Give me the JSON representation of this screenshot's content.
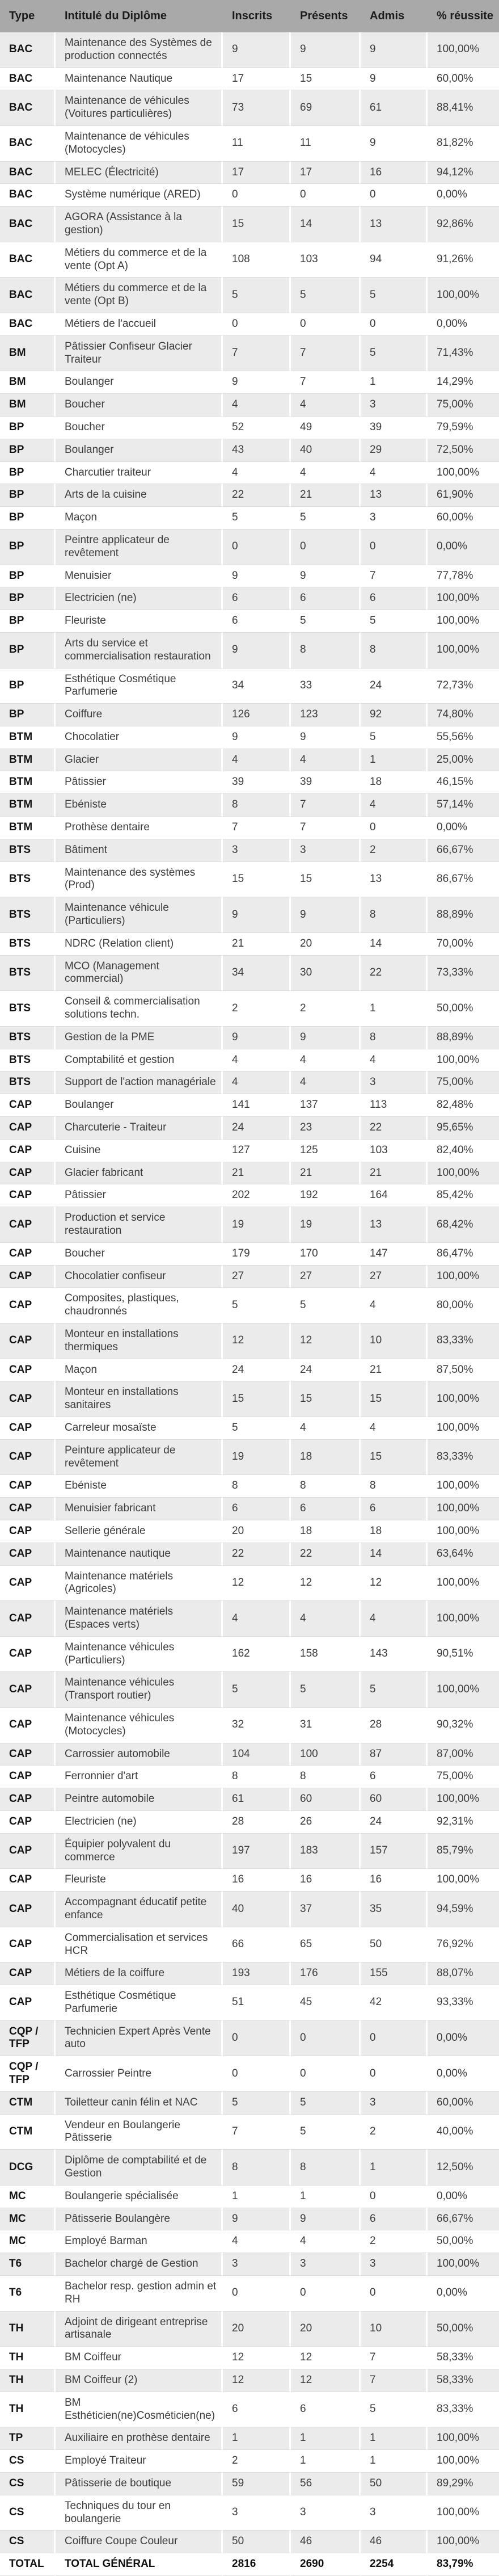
{
  "colors": {
    "header_bg": "#a9a9a9",
    "row_alt_bg": "#ebebeb",
    "row_bg": "#ffffff",
    "text": "#3c3c3c",
    "text_bold": "#141414",
    "grid_line": "#dcdcdc"
  },
  "table": {
    "headers": [
      "Type",
      "Intitulé du Diplôme",
      "Inscrits",
      "Présents",
      "Admis",
      "% réussite"
    ],
    "rows": [
      {
        "type": "BAC",
        "name": "Maintenance des Systèmes de production connectés",
        "inscrits": "9",
        "presents": "9",
        "admis": "9",
        "reussite": "100,00%"
      },
      {
        "type": "BAC",
        "name": "Maintenance Nautique",
        "inscrits": "17",
        "presents": "15",
        "admis": "9",
        "reussite": "60,00%"
      },
      {
        "type": "BAC",
        "name": "Maintenance de véhicules (Voitures particulières)",
        "inscrits": "73",
        "presents": "69",
        "admis": "61",
        "reussite": "88,41%"
      },
      {
        "type": "BAC",
        "name": "Maintenance de véhicules (Motocycles)",
        "inscrits": "11",
        "presents": "11",
        "admis": "9",
        "reussite": "81,82%"
      },
      {
        "type": "BAC",
        "name": "MELEC (Électricité)",
        "inscrits": "17",
        "presents": "17",
        "admis": "16",
        "reussite": "94,12%"
      },
      {
        "type": "BAC",
        "name": "Système numérique (ARED)",
        "inscrits": "0",
        "presents": "0",
        "admis": "0",
        "reussite": "0,00%"
      },
      {
        "type": "BAC",
        "name": "AGORA (Assistance à la gestion)",
        "inscrits": "15",
        "presents": "14",
        "admis": "13",
        "reussite": "92,86%"
      },
      {
        "type": "BAC",
        "name": "Métiers du commerce et de la vente (Opt A)",
        "inscrits": "108",
        "presents": "103",
        "admis": "94",
        "reussite": "91,26%"
      },
      {
        "type": "BAC",
        "name": "Métiers du commerce et de la vente (Opt B)",
        "inscrits": "5",
        "presents": "5",
        "admis": "5",
        "reussite": "100,00%"
      },
      {
        "type": "BAC",
        "name": "Métiers de l'accueil",
        "inscrits": "0",
        "presents": "0",
        "admis": "0",
        "reussite": "0,00%"
      },
      {
        "type": "BM",
        "name": "Pâtissier Confiseur Glacier Traiteur",
        "inscrits": "7",
        "presents": "7",
        "admis": "5",
        "reussite": "71,43%"
      },
      {
        "type": "BM",
        "name": "Boulanger",
        "inscrits": "9",
        "presents": "7",
        "admis": "1",
        "reussite": "14,29%"
      },
      {
        "type": "BM",
        "name": "Boucher",
        "inscrits": "4",
        "presents": "4",
        "admis": "3",
        "reussite": "75,00%"
      },
      {
        "type": "BP",
        "name": "Boucher",
        "inscrits": "52",
        "presents": "49",
        "admis": "39",
        "reussite": "79,59%"
      },
      {
        "type": "BP",
        "name": "Boulanger",
        "inscrits": "43",
        "presents": "40",
        "admis": "29",
        "reussite": "72,50%"
      },
      {
        "type": "BP",
        "name": "Charcutier traiteur",
        "inscrits": "4",
        "presents": "4",
        "admis": "4",
        "reussite": "100,00%"
      },
      {
        "type": "BP",
        "name": "Arts de la cuisine",
        "inscrits": "22",
        "presents": "21",
        "admis": "13",
        "reussite": "61,90%"
      },
      {
        "type": "BP",
        "name": "Maçon",
        "inscrits": "5",
        "presents": "5",
        "admis": "3",
        "reussite": "60,00%"
      },
      {
        "type": "BP",
        "name": "Peintre applicateur de revêtement",
        "inscrits": "0",
        "presents": "0",
        "admis": "0",
        "reussite": "0,00%"
      },
      {
        "type": "BP",
        "name": "Menuisier",
        "inscrits": "9",
        "presents": "9",
        "admis": "7",
        "reussite": "77,78%"
      },
      {
        "type": "BP",
        "name": "Electricien (ne)",
        "inscrits": "6",
        "presents": "6",
        "admis": "6",
        "reussite": "100,00%"
      },
      {
        "type": "BP",
        "name": "Fleuriste",
        "inscrits": "6",
        "presents": "5",
        "admis": "5",
        "reussite": "100,00%"
      },
      {
        "type": "BP",
        "name": "Arts du service et commercialisation restauration",
        "inscrits": "9",
        "presents": "8",
        "admis": "8",
        "reussite": "100,00%"
      },
      {
        "type": "BP",
        "name": "Esthétique Cosmétique Parfumerie",
        "inscrits": "34",
        "presents": "33",
        "admis": "24",
        "reussite": "72,73%"
      },
      {
        "type": "BP",
        "name": "Coiffure",
        "inscrits": "126",
        "presents": "123",
        "admis": "92",
        "reussite": "74,80%"
      },
      {
        "type": "BTM",
        "name": "Chocolatier",
        "inscrits": "9",
        "presents": "9",
        "admis": "5",
        "reussite": "55,56%"
      },
      {
        "type": "BTM",
        "name": "Glacier",
        "inscrits": "4",
        "presents": "4",
        "admis": "1",
        "reussite": "25,00%"
      },
      {
        "type": "BTM",
        "name": "Pâtissier",
        "inscrits": "39",
        "presents": "39",
        "admis": "18",
        "reussite": "46,15%"
      },
      {
        "type": "BTM",
        "name": "Ebéniste",
        "inscrits": "8",
        "presents": "7",
        "admis": "4",
        "reussite": "57,14%"
      },
      {
        "type": "BTM",
        "name": "Prothèse dentaire",
        "inscrits": "7",
        "presents": "7",
        "admis": "0",
        "reussite": "0,00%"
      },
      {
        "type": "BTS",
        "name": "Bâtiment",
        "inscrits": "3",
        "presents": "3",
        "admis": "2",
        "reussite": "66,67%"
      },
      {
        "type": "BTS",
        "name": "Maintenance des systèmes (Prod)",
        "inscrits": "15",
        "presents": "15",
        "admis": "13",
        "reussite": "86,67%"
      },
      {
        "type": "BTS",
        "name": "Maintenance véhicule (Particuliers)",
        "inscrits": "9",
        "presents": "9",
        "admis": "8",
        "reussite": "88,89%"
      },
      {
        "type": "BTS",
        "name": "NDRC (Relation client)",
        "inscrits": "21",
        "presents": "20",
        "admis": "14",
        "reussite": "70,00%"
      },
      {
        "type": "BTS",
        "name": "MCO (Management commercial)",
        "inscrits": "34",
        "presents": "30",
        "admis": "22",
        "reussite": "73,33%"
      },
      {
        "type": "BTS",
        "name": "Conseil & commercialisation solutions techn.",
        "inscrits": "2",
        "presents": "2",
        "admis": "1",
        "reussite": "50,00%"
      },
      {
        "type": "BTS",
        "name": "Gestion de la PME",
        "inscrits": "9",
        "presents": "9",
        "admis": "8",
        "reussite": "88,89%"
      },
      {
        "type": "BTS",
        "name": "Comptabilité et gestion",
        "inscrits": "4",
        "presents": "4",
        "admis": "4",
        "reussite": "100,00%"
      },
      {
        "type": "BTS",
        "name": "Support de l'action managériale",
        "inscrits": "4",
        "presents": "4",
        "admis": "3",
        "reussite": "75,00%"
      },
      {
        "type": "CAP",
        "name": "Boulanger",
        "inscrits": "141",
        "presents": "137",
        "admis": "113",
        "reussite": "82,48%"
      },
      {
        "type": "CAP",
        "name": "Charcuterie - Traiteur",
        "inscrits": "24",
        "presents": "23",
        "admis": "22",
        "reussite": "95,65%"
      },
      {
        "type": "CAP",
        "name": "Cuisine",
        "inscrits": "127",
        "presents": "125",
        "admis": "103",
        "reussite": "82,40%"
      },
      {
        "type": "CAP",
        "name": "Glacier fabricant",
        "inscrits": "21",
        "presents": "21",
        "admis": "21",
        "reussite": "100,00%"
      },
      {
        "type": "CAP",
        "name": "Pâtissier",
        "inscrits": "202",
        "presents": "192",
        "admis": "164",
        "reussite": "85,42%"
      },
      {
        "type": "CAP",
        "name": "Production et service restauration",
        "inscrits": "19",
        "presents": "19",
        "admis": "13",
        "reussite": "68,42%"
      },
      {
        "type": "CAP",
        "name": "Boucher",
        "inscrits": "179",
        "presents": "170",
        "admis": "147",
        "reussite": "86,47%"
      },
      {
        "type": "CAP",
        "name": "Chocolatier confiseur",
        "inscrits": "27",
        "presents": "27",
        "admis": "27",
        "reussite": "100,00%"
      },
      {
        "type": "CAP",
        "name": "Composites, plastiques, chaudronnés",
        "inscrits": "5",
        "presents": "5",
        "admis": "4",
        "reussite": "80,00%"
      },
      {
        "type": "CAP",
        "name": "Monteur en installations thermiques",
        "inscrits": "12",
        "presents": "12",
        "admis": "10",
        "reussite": "83,33%"
      },
      {
        "type": "CAP",
        "name": "Maçon",
        "inscrits": "24",
        "presents": "24",
        "admis": "21",
        "reussite": "87,50%"
      },
      {
        "type": "CAP",
        "name": "Monteur en installations sanitaires",
        "inscrits": "15",
        "presents": "15",
        "admis": "15",
        "reussite": "100,00%"
      },
      {
        "type": "CAP",
        "name": "Carreleur mosaïste",
        "inscrits": "5",
        "presents": "4",
        "admis": "4",
        "reussite": "100,00%"
      },
      {
        "type": "CAP",
        "name": "Peinture applicateur de revêtement",
        "inscrits": "19",
        "presents": "18",
        "admis": "15",
        "reussite": "83,33%"
      },
      {
        "type": "CAP",
        "name": "Ebéniste",
        "inscrits": "8",
        "presents": "8",
        "admis": "8",
        "reussite": "100,00%"
      },
      {
        "type": "CAP",
        "name": "Menuisier fabricant",
        "inscrits": "6",
        "presents": "6",
        "admis": "6",
        "reussite": "100,00%"
      },
      {
        "type": "CAP",
        "name": "Sellerie générale",
        "inscrits": "20",
        "presents": "18",
        "admis": "18",
        "reussite": "100,00%"
      },
      {
        "type": "CAP",
        "name": "Maintenance nautique",
        "inscrits": "22",
        "presents": "22",
        "admis": "14",
        "reussite": "63,64%"
      },
      {
        "type": "CAP",
        "name": "Maintenance matériels (Agricoles)",
        "inscrits": "12",
        "presents": "12",
        "admis": "12",
        "reussite": "100,00%"
      },
      {
        "type": "CAP",
        "name": "Maintenance matériels (Espaces verts)",
        "inscrits": "4",
        "presents": "4",
        "admis": "4",
        "reussite": "100,00%"
      },
      {
        "type": "CAP",
        "name": "Maintenance véhicules (Particuliers)",
        "inscrits": "162",
        "presents": "158",
        "admis": "143",
        "reussite": "90,51%"
      },
      {
        "type": "CAP",
        "name": "Maintenance véhicules (Transport routier)",
        "inscrits": "5",
        "presents": "5",
        "admis": "5",
        "reussite": "100,00%"
      },
      {
        "type": "CAP",
        "name": "Maintenance véhicules (Motocycles)",
        "inscrits": "32",
        "presents": "31",
        "admis": "28",
        "reussite": "90,32%"
      },
      {
        "type": "CAP",
        "name": "Carrossier automobile",
        "inscrits": "104",
        "presents": "100",
        "admis": "87",
        "reussite": "87,00%"
      },
      {
        "type": "CAP",
        "name": "Ferronnier d'art",
        "inscrits": "8",
        "presents": "8",
        "admis": "6",
        "reussite": "75,00%"
      },
      {
        "type": "CAP",
        "name": "Peintre automobile",
        "inscrits": "61",
        "presents": "60",
        "admis": "60",
        "reussite": "100,00%"
      },
      {
        "type": "CAP",
        "name": "Electricien (ne)",
        "inscrits": "28",
        "presents": "26",
        "admis": "24",
        "reussite": "92,31%"
      },
      {
        "type": "CAP",
        "name": "Équipier polyvalent du commerce",
        "inscrits": "197",
        "presents": "183",
        "admis": "157",
        "reussite": "85,79%"
      },
      {
        "type": "CAP",
        "name": "Fleuriste",
        "inscrits": "16",
        "presents": "16",
        "admis": "16",
        "reussite": "100,00%"
      },
      {
        "type": "CAP",
        "name": "Accompagnant éducatif petite enfance",
        "inscrits": "40",
        "presents": "37",
        "admis": "35",
        "reussite": "94,59%"
      },
      {
        "type": "CAP",
        "name": "Commercialisation et services HCR",
        "inscrits": "66",
        "presents": "65",
        "admis": "50",
        "reussite": "76,92%"
      },
      {
        "type": "CAP",
        "name": "Métiers de la coiffure",
        "inscrits": "193",
        "presents": "176",
        "admis": "155",
        "reussite": "88,07%"
      },
      {
        "type": "CAP",
        "name": "Esthétique Cosmétique Parfumerie",
        "inscrits": "51",
        "presents": "45",
        "admis": "42",
        "reussite": "93,33%"
      },
      {
        "type": "CQP / TFP",
        "name": "Technicien Expert Après Vente auto",
        "inscrits": "0",
        "presents": "0",
        "admis": "0",
        "reussite": "0,00%"
      },
      {
        "type": "CQP / TFP",
        "name": "Carrossier Peintre",
        "inscrits": "0",
        "presents": "0",
        "admis": "0",
        "reussite": "0,00%"
      },
      {
        "type": "CTM",
        "name": "Toiletteur canin félin et NAC",
        "inscrits": "5",
        "presents": "5",
        "admis": "3",
        "reussite": "60,00%"
      },
      {
        "type": "CTM",
        "name": "Vendeur en Boulangerie Pâtisserie",
        "inscrits": "7",
        "presents": "5",
        "admis": "2",
        "reussite": "40,00%"
      },
      {
        "type": "DCG",
        "name": "Diplôme de comptabilité et de Gestion",
        "inscrits": "8",
        "presents": "8",
        "admis": "1",
        "reussite": "12,50%"
      },
      {
        "type": "MC",
        "name": "Boulangerie spécialisée",
        "inscrits": "1",
        "presents": "1",
        "admis": "0",
        "reussite": "0,00%"
      },
      {
        "type": "MC",
        "name": "Pâtisserie Boulangère",
        "inscrits": "9",
        "presents": "9",
        "admis": "6",
        "reussite": "66,67%"
      },
      {
        "type": "MC",
        "name": "Employé Barman",
        "inscrits": "4",
        "presents": "4",
        "admis": "2",
        "reussite": "50,00%"
      },
      {
        "type": "T6",
        "name": "Bachelor chargé de Gestion",
        "inscrits": "3",
        "presents": "3",
        "admis": "3",
        "reussite": "100,00%"
      },
      {
        "type": "T6",
        "name": "Bachelor resp. gestion admin et RH",
        "inscrits": "0",
        "presents": "0",
        "admis": "0",
        "reussite": "0,00%"
      },
      {
        "type": "TH",
        "name": "Adjoint de dirigeant entreprise artisanale",
        "inscrits": "20",
        "presents": "20",
        "admis": "10",
        "reussite": "50,00%"
      },
      {
        "type": "TH",
        "name": "BM Coiffeur",
        "inscrits": "12",
        "presents": "12",
        "admis": "7",
        "reussite": "58,33%"
      },
      {
        "type": "TH",
        "name": "BM Coiffeur (2)",
        "inscrits": "12",
        "presents": "12",
        "admis": "7",
        "reussite": "58,33%"
      },
      {
        "type": "TH",
        "name": "BM Esthéticien(ne)Cosméticien(ne)",
        "inscrits": "6",
        "presents": "6",
        "admis": "5",
        "reussite": "83,33%"
      },
      {
        "type": "TP",
        "name": "Auxiliaire en prothèse dentaire",
        "inscrits": "1",
        "presents": "1",
        "admis": "1",
        "reussite": "100,00%"
      },
      {
        "type": "CS",
        "name": "Employé Traiteur",
        "inscrits": "2",
        "presents": "1",
        "admis": "1",
        "reussite": "100,00%"
      },
      {
        "type": "CS",
        "name": "Pâtisserie de boutique",
        "inscrits": "59",
        "presents": "56",
        "admis": "50",
        "reussite": "89,29%"
      },
      {
        "type": "CS",
        "name": "Techniques du tour en boulangerie",
        "inscrits": "3",
        "presents": "3",
        "admis": "3",
        "reussite": "100,00%"
      },
      {
        "type": "CS",
        "name": "Coiffure Coupe Couleur",
        "inscrits": "50",
        "presents": "46",
        "admis": "46",
        "reussite": "100,00%"
      }
    ],
    "total": {
      "type": "TOTAL",
      "name": "TOTAL GÉNÉRAL",
      "inscrits": "2816",
      "presents": "2690",
      "admis": "2254",
      "reussite": "83,79%"
    }
  }
}
